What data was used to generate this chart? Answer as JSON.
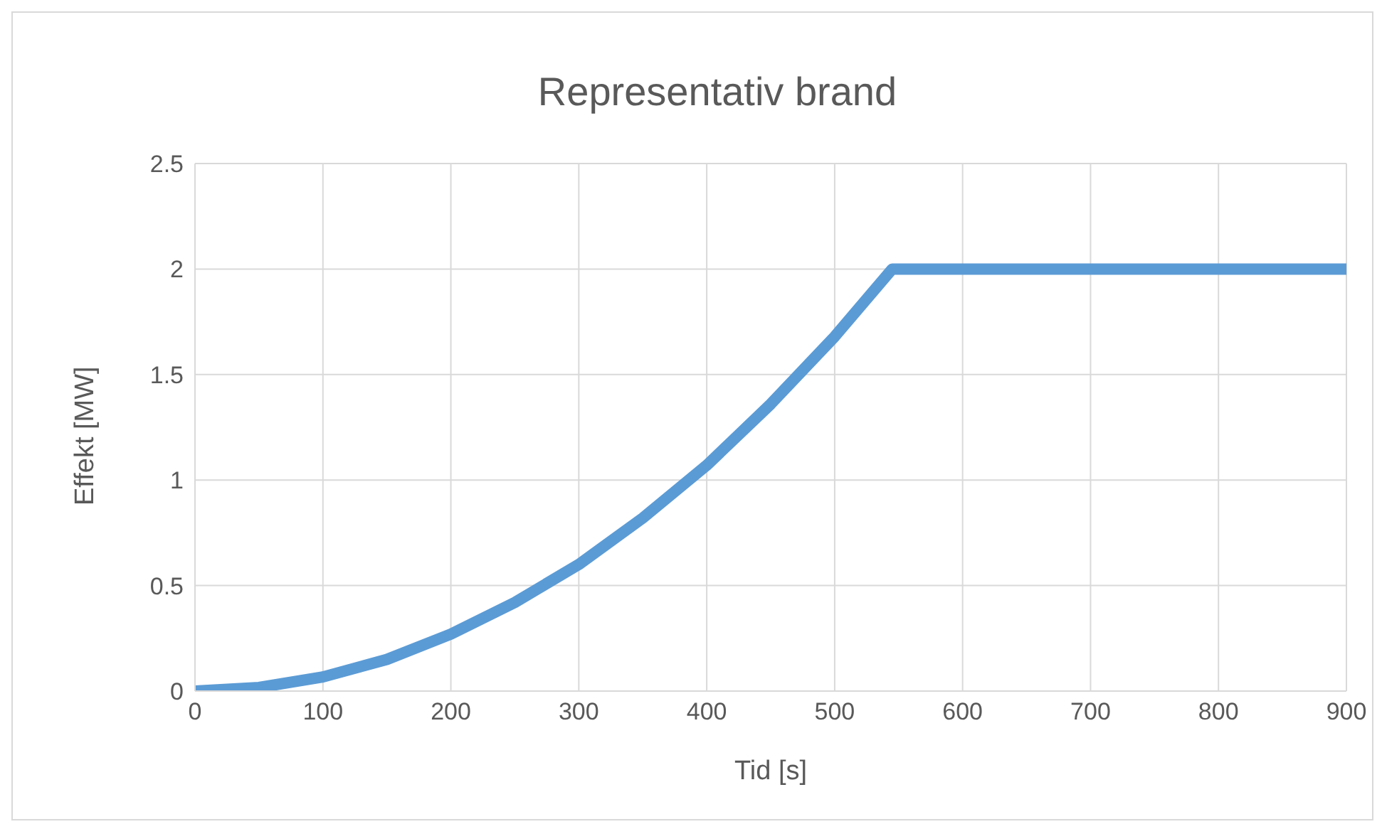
{
  "chart_data": {
    "type": "line",
    "title": "Representativ brand",
    "xlabel": "Tid [s]",
    "ylabel": "Effekt [MW]",
    "x": [
      0,
      50,
      100,
      150,
      200,
      250,
      300,
      350,
      400,
      450,
      500,
      545,
      900
    ],
    "series": [
      {
        "color": "#5b9bd5",
        "values": [
          0,
          0.017,
          0.067,
          0.15,
          0.27,
          0.42,
          0.6,
          0.82,
          1.07,
          1.36,
          1.68,
          2,
          2
        ]
      }
    ],
    "xlim": [
      0,
      900
    ],
    "xticks": [
      0,
      100,
      200,
      300,
      400,
      500,
      600,
      700,
      800,
      900
    ],
    "ylim": [
      0,
      2.5
    ],
    "yticks": [
      0,
      0.5,
      1,
      1.5,
      2,
      2.5
    ],
    "grid": true,
    "legend": false,
    "marker": "none",
    "line_style": "solid"
  }
}
